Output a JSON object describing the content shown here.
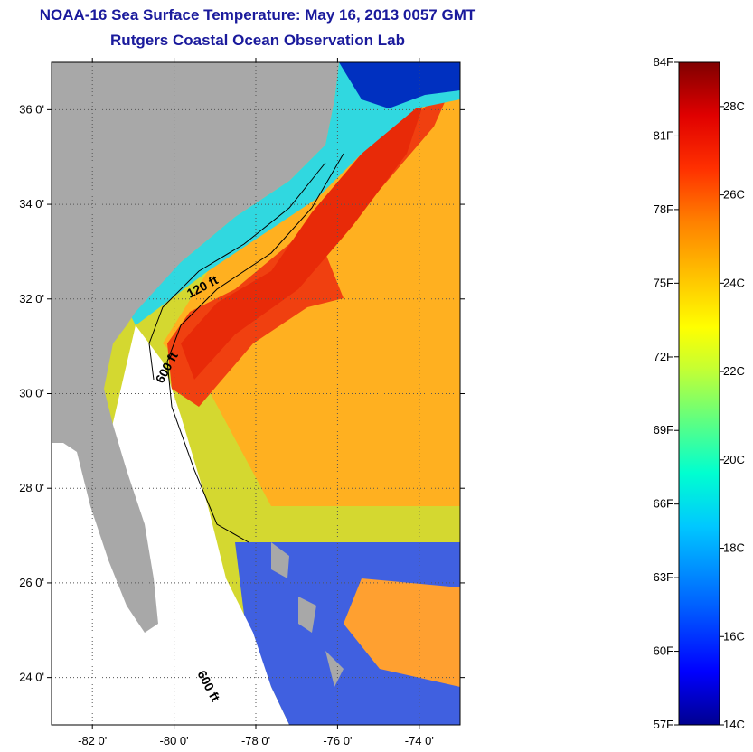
{
  "header": {
    "title": "NOAA-16 Sea Surface Temperature:  May 16, 2013 0057 GMT",
    "subtitle": "Rutgers Coastal Ocean Observation Lab"
  },
  "map": {
    "lon_range": [
      -83,
      -73
    ],
    "lat_range": [
      23,
      37
    ],
    "lat_ticks": [
      {
        "value": 24,
        "label": "24 0'"
      },
      {
        "value": 26,
        "label": "26 0'"
      },
      {
        "value": 28,
        "label": "28 0'"
      },
      {
        "value": 30,
        "label": "30 0'"
      },
      {
        "value": 32,
        "label": "32 0'"
      },
      {
        "value": 34,
        "label": "34 0'"
      },
      {
        "value": 36,
        "label": "36 0'"
      }
    ],
    "lon_ticks": [
      {
        "value": -82,
        "label": "-82 0'"
      },
      {
        "value": -80,
        "label": "-80 0'"
      },
      {
        "value": -78,
        "label": "-78 0'"
      },
      {
        "value": -76,
        "label": "-76 0'"
      },
      {
        "value": -74,
        "label": "-74 0'"
      }
    ],
    "contour_labels": [
      {
        "text": "120 ft"
      },
      {
        "text": "600 ft"
      },
      {
        "text": "600 ft"
      }
    ],
    "colors": {
      "land": "#a8a8a8",
      "no_data": "#ffffff",
      "grid": "#555555"
    }
  },
  "colorbar": {
    "fahrenheit_labels": [
      "84F",
      "81F",
      "78F",
      "75F",
      "72F",
      "69F",
      "66F",
      "63F",
      "60F",
      "57F"
    ],
    "celsius_labels": [
      "28C",
      "26C",
      "24C",
      "22C",
      "20C",
      "18C",
      "16C",
      "14C"
    ],
    "range_c": [
      14,
      29
    ],
    "colors": [
      "#00008f",
      "#0000ff",
      "#0060ff",
      "#00c8ff",
      "#00ffd0",
      "#60ff80",
      "#c8ff30",
      "#ffff00",
      "#ffc000",
      "#ff8000",
      "#ff3000",
      "#e00000",
      "#800000"
    ]
  }
}
